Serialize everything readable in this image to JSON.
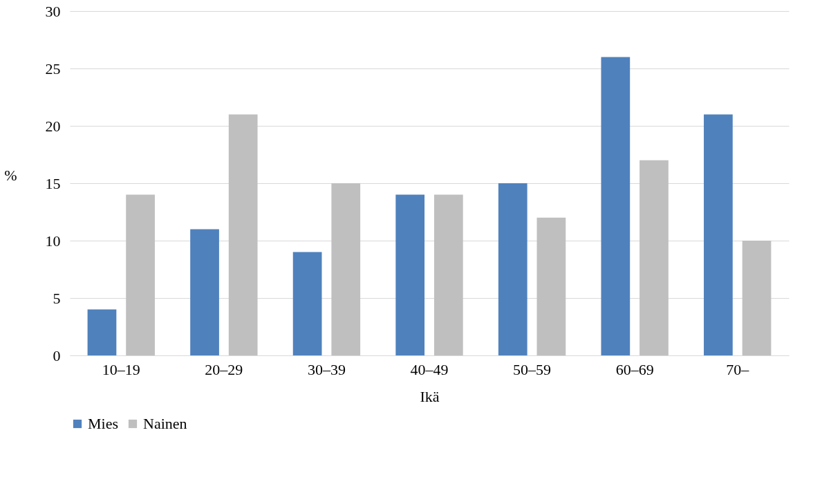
{
  "chart_data": {
    "type": "bar",
    "xlabel": "Ikä",
    "ylabel": "%",
    "categories": [
      "10–19",
      "20–29",
      "30–39",
      "40–49",
      "50–59",
      "60–69",
      "70–"
    ],
    "series": [
      {
        "name": "Mies",
        "color": "#4f81bd",
        "values": [
          4,
          11,
          9,
          14,
          15,
          26,
          21
        ]
      },
      {
        "name": "Nainen",
        "color": "#bfbfbf",
        "values": [
          14,
          21,
          15,
          14,
          12,
          17,
          10
        ]
      }
    ],
    "ylim": [
      0,
      30
    ],
    "yticks": [
      0,
      5,
      10,
      15,
      20,
      25,
      30
    ],
    "grid": "y",
    "legend": "bottom"
  }
}
